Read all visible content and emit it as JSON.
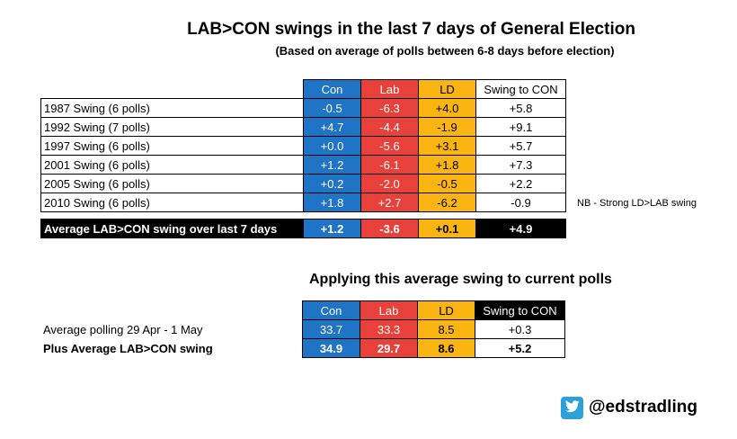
{
  "title": "LAB>CON swings in the last 7 days of General Election",
  "subtitle": "(Based on average of polls between 6-8 days before election)",
  "chart_data": {
    "type": "table",
    "columns": [
      "Con",
      "Lab",
      "LD",
      "Swing to CON"
    ],
    "rows": [
      {
        "label": "1987 Swing (6 polls)",
        "values": [
          "-0.5",
          "-6.3",
          "+4.0",
          "+5.8"
        ]
      },
      {
        "label": "1992 Swing (7 polls)",
        "values": [
          "+4.7",
          "-4.4",
          "-1.9",
          "+9.1"
        ]
      },
      {
        "label": "1997 Swing (6 polls)",
        "values": [
          "+0.0",
          "-5.6",
          "+3.1",
          "+5.7"
        ]
      },
      {
        "label": "2001 Swing (6 polls)",
        "values": [
          "+1.2",
          "-6.1",
          "+1.8",
          "+7.3"
        ]
      },
      {
        "label": "2005 Swing (6 polls)",
        "values": [
          "+0.2",
          "-2.0",
          "-0.5",
          "+2.2"
        ]
      },
      {
        "label": "2010 Swing (6 polls)",
        "values": [
          "+1.8",
          "+2.7",
          "-6.2",
          "-0.9"
        ],
        "note": "NB - Strong LD>LAB swing"
      }
    ],
    "average": {
      "label": "Average LAB>CON swing over last 7 days",
      "values": [
        "+1.2",
        "-3.6",
        "+0.1",
        "+4.9"
      ]
    },
    "applied": {
      "title": "Applying this average swing to current polls",
      "columns": [
        "Con",
        "Lab",
        "LD",
        "Swing to CON"
      ],
      "rows": [
        {
          "label": "Average polling 29 Apr - 1 May",
          "values": [
            "33.7",
            "33.3",
            "8.5",
            "+0.3"
          ]
        },
        {
          "label": "Plus Average LAB>CON swing",
          "values": [
            "34.9",
            "29.7",
            "8.6",
            "+5.2"
          ]
        }
      ]
    }
  },
  "branding": {
    "handle": "@edstradling",
    "icon": "twitter-bird-icon"
  }
}
